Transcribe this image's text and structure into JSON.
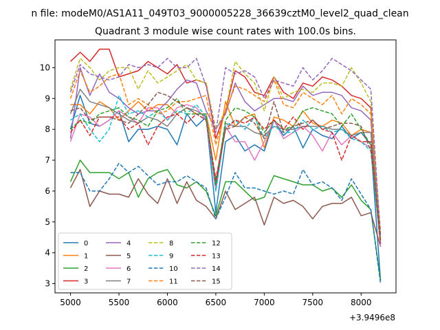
{
  "chart_data": {
    "type": "line",
    "suptitle": "n file: modeM0/AS1A11_049T03_9000005228_36639cztM0_level2_quad_clean",
    "title": "Quadrant 3 module wise count rates with 100.0s bins.",
    "xlabel": "",
    "ylabel": "",
    "offset_text": "+3.9496e8",
    "xlim": [
      4840,
      8360
    ],
    "ylim": [
      2.7,
      10.9
    ],
    "xticks": [
      5000,
      5500,
      6000,
      6500,
      7000,
      7500,
      8000
    ],
    "yticks": [
      3,
      4,
      5,
      6,
      7,
      8,
      9,
      10
    ],
    "legend_position": "lower-left",
    "x": [
      5000,
      5100,
      5200,
      5300,
      5400,
      5500,
      5600,
      5700,
      5800,
      5900,
      6000,
      6100,
      6200,
      6300,
      6400,
      6500,
      6600,
      6700,
      6800,
      6900,
      7000,
      7100,
      7200,
      7300,
      7400,
      7500,
      7600,
      7700,
      7800,
      7900,
      8000,
      8100,
      8200
    ],
    "series": [
      {
        "name": "0",
        "color": "#1f77b4",
        "style": "solid",
        "values": [
          8.0,
          9.1,
          8.2,
          8.1,
          8.3,
          8.6,
          7.6,
          8.0,
          8.0,
          8.1,
          8.0,
          7.5,
          8.5,
          8.1,
          8.4,
          5.3,
          7.6,
          7.8,
          7.3,
          7.5,
          7.3,
          8.3,
          7.8,
          8.1,
          7.4,
          8.0,
          7.8,
          7.7,
          8.1,
          7.7,
          7.9,
          7.5,
          3.1
        ]
      },
      {
        "name": "1",
        "color": "#ff7f0e",
        "style": "solid",
        "values": [
          8.8,
          8.8,
          8.5,
          8.9,
          8.7,
          8.3,
          8.6,
          8.9,
          8.6,
          8.8,
          8.8,
          8.5,
          8.7,
          8.5,
          8.5,
          7.0,
          8.9,
          8.1,
          8.4,
          8.5,
          7.4,
          8.4,
          8.3,
          8.1,
          8.6,
          8.2,
          8.1,
          8.3,
          8.2,
          7.8,
          8.0,
          7.9,
          4.5
        ]
      },
      {
        "name": "2",
        "color": "#2ca02c",
        "style": "solid",
        "values": [
          6.3,
          7.0,
          6.6,
          6.6,
          6.6,
          6.4,
          6.6,
          5.8,
          6.4,
          6.6,
          6.7,
          6.2,
          6.1,
          6.3,
          6.0,
          5.2,
          6.3,
          6.3,
          6.0,
          5.7,
          5.8,
          6.5,
          6.4,
          6.3,
          6.2,
          6.2,
          6.0,
          6.1,
          5.8,
          6.2,
          5.7,
          5.4,
          3.1
        ]
      },
      {
        "name": "3",
        "color": "#d62728",
        "style": "solid",
        "values": [
          10.2,
          10.5,
          10.2,
          10.6,
          10.6,
          9.7,
          9.8,
          9.9,
          10.2,
          10.0,
          9.8,
          10.1,
          9.5,
          9.6,
          9.5,
          7.7,
          8.6,
          9.9,
          9.7,
          9.2,
          9.1,
          9.7,
          9.2,
          9.0,
          9.5,
          9.4,
          9.7,
          9.6,
          9.4,
          9.1,
          9.0,
          8.7,
          4.3
        ]
      },
      {
        "name": "4",
        "color": "#9467bd",
        "style": "solid",
        "values": [
          7.7,
          10.0,
          9.1,
          9.8,
          9.2,
          9.0,
          8.7,
          8.5,
          8.6,
          8.6,
          8.9,
          9.3,
          9.6,
          9.5,
          8.6,
          8.0,
          8.5,
          9.5,
          8.9,
          8.6,
          8.8,
          9.0,
          9.0,
          8.9,
          9.4,
          9.1,
          9.2,
          9.2,
          9.1,
          8.7,
          8.6,
          8.3,
          4.4
        ]
      },
      {
        "name": "5",
        "color": "#8c564b",
        "style": "solid",
        "values": [
          6.1,
          6.7,
          5.5,
          6.0,
          5.9,
          5.9,
          5.8,
          6.4,
          5.9,
          5.6,
          6.4,
          5.6,
          6.3,
          5.7,
          5.5,
          5.1,
          6.0,
          5.4,
          5.6,
          5.8,
          4.9,
          5.8,
          5.6,
          5.7,
          5.5,
          5.1,
          5.5,
          5.6,
          5.6,
          5.8,
          5.2,
          5.3,
          4.2
        ]
      },
      {
        "name": "6",
        "color": "#e377c2",
        "style": "solid",
        "values": [
          7.6,
          8.5,
          8.4,
          8.1,
          8.3,
          8.6,
          8.4,
          8.2,
          8.7,
          8.7,
          8.3,
          8.7,
          8.8,
          8.7,
          8.3,
          6.0,
          8.1,
          7.6,
          7.6,
          7.0,
          7.6,
          8.3,
          7.7,
          7.9,
          8.1,
          7.8,
          7.3,
          7.9,
          7.5,
          7.8,
          7.6,
          7.4,
          4.2
        ]
      },
      {
        "name": "7",
        "color": "#7f7f7f",
        "style": "solid",
        "values": [
          8.5,
          9.3,
          8.9,
          8.8,
          8.7,
          8.5,
          8.3,
          8.2,
          8.4,
          8.3,
          8.1,
          8.5,
          8.7,
          8.6,
          8.4,
          6.3,
          8.2,
          8.1,
          8.1,
          7.9,
          7.8,
          8.1,
          8.0,
          8.0,
          8.1,
          8.1,
          8.1,
          8.0,
          8.0,
          7.8,
          7.9,
          7.9,
          4.4
        ]
      },
      {
        "name": "8",
        "color": "#bcbd22",
        "style": "dashed",
        "values": [
          9.3,
          10.3,
          10.0,
          9.6,
          9.9,
          10.0,
          10.0,
          9.3,
          9.9,
          9.5,
          9.7,
          9.9,
          10.1,
          9.6,
          9.5,
          8.0,
          8.6,
          10.2,
          9.8,
          9.5,
          8.6,
          9.7,
          9.0,
          9.2,
          9.3,
          9.2,
          9.5,
          9.5,
          9.4,
          10.0,
          9.5,
          8.9,
          4.5
        ]
      },
      {
        "name": "9",
        "color": "#17becf",
        "style": "dashed",
        "values": [
          8.3,
          8.5,
          8.0,
          7.6,
          8.0,
          9.1,
          8.5,
          8.6,
          8.4,
          8.6,
          8.3,
          8.6,
          8.5,
          8.8,
          8.4,
          6.0,
          8.1,
          8.3,
          8.0,
          8.4,
          7.7,
          8.1,
          7.9,
          7.9,
          8.3,
          8.0,
          8.1,
          7.9,
          8.0,
          7.7,
          7.6,
          7.3,
          4.3
        ]
      },
      {
        "name": "10",
        "color": "#1f77b4",
        "style": "dashed",
        "values": [
          6.6,
          6.6,
          6.0,
          6.0,
          6.4,
          6.9,
          6.6,
          6.8,
          6.5,
          6.2,
          6.3,
          6.3,
          6.5,
          6.3,
          6.1,
          5.1,
          5.8,
          6.6,
          6.1,
          6.1,
          6.0,
          5.9,
          6.0,
          5.9,
          6.7,
          6.2,
          6.3,
          6.1,
          5.7,
          6.4,
          5.9,
          5.4,
          3.0
        ]
      },
      {
        "name": "11",
        "color": "#ff7f0e",
        "style": "dashed",
        "values": [
          9.0,
          9.9,
          9.2,
          9.4,
          9.7,
          9.8,
          8.8,
          9.0,
          8.8,
          8.5,
          8.6,
          8.9,
          8.9,
          9.0,
          9.1,
          7.5,
          8.6,
          9.4,
          9.3,
          9.1,
          8.9,
          9.6,
          8.8,
          8.7,
          9.2,
          9.0,
          8.8,
          9.1,
          8.5,
          9.0,
          8.8,
          8.5,
          4.7
        ]
      },
      {
        "name": "12",
        "color": "#2ca02c",
        "style": "dashed",
        "values": [
          8.0,
          8.3,
          8.2,
          8.5,
          8.6,
          8.7,
          8.4,
          8.3,
          8.1,
          8.6,
          8.7,
          9.0,
          8.5,
          8.5,
          8.5,
          6.2,
          8.3,
          8.7,
          8.6,
          8.4,
          7.9,
          8.3,
          8.0,
          8.1,
          8.6,
          8.7,
          8.6,
          8.5,
          8.1,
          8.5,
          8.0,
          7.5,
          4.4
        ]
      },
      {
        "name": "13",
        "color": "#d62728",
        "style": "dashed",
        "values": [
          7.9,
          8.3,
          7.8,
          8.4,
          8.4,
          8.4,
          8.0,
          8.2,
          7.5,
          8.1,
          8.4,
          8.5,
          8.2,
          8.5,
          8.3,
          6.4,
          8.0,
          8.3,
          8.2,
          8.4,
          8.0,
          8.3,
          8.0,
          8.4,
          8.0,
          8.3,
          8.0,
          7.9,
          7.0,
          7.8,
          7.6,
          7.6,
          4.3
        ]
      },
      {
        "name": "14",
        "color": "#9467bd",
        "style": "dashed",
        "values": [
          9.2,
          10.1,
          9.8,
          9.7,
          9.6,
          9.7,
          10.1,
          10.0,
          10.1,
          10.0,
          10.3,
          10.0,
          10.0,
          10.3,
          9.4,
          7.9,
          10.0,
          9.8,
          9.9,
          9.7,
          9.0,
          9.6,
          9.5,
          9.4,
          10.0,
          9.6,
          9.9,
          10.3,
          10.1,
          9.9,
          9.6,
          9.3,
          4.5
        ]
      },
      {
        "name": "15",
        "color": "#8c564b",
        "style": "dashed",
        "values": [
          8.6,
          8.7,
          8.3,
          8.4,
          8.4,
          8.3,
          8.2,
          8.5,
          8.8,
          9.2,
          9.1,
          8.9,
          8.7,
          8.5,
          8.3,
          6.2,
          8.0,
          8.1,
          8.4,
          8.2,
          7.7,
          8.9,
          7.9,
          8.1,
          8.2,
          8.3,
          8.0,
          8.1,
          8.2,
          8.2,
          8.1,
          7.3,
          4.6
        ]
      }
    ]
  }
}
